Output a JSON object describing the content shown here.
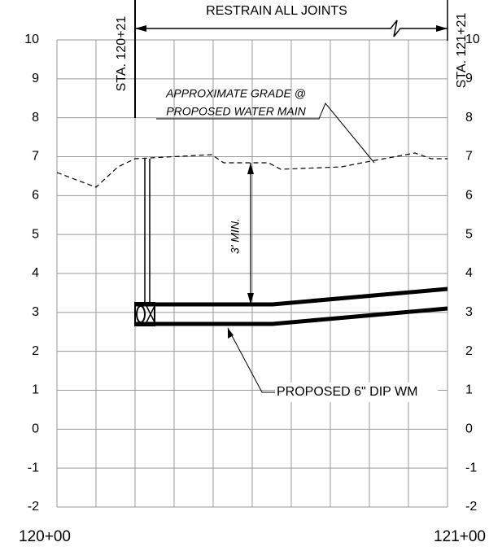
{
  "header": {
    "title": "RESTRAIN ALL JOINTS"
  },
  "stations": {
    "left": "STA. 120+21",
    "right": "STA. 121+21"
  },
  "axis": {
    "y_labels": [
      "10",
      "9",
      "8",
      "7",
      "6",
      "5",
      "4",
      "3",
      "2",
      "1",
      "0",
      "-1",
      "-2"
    ],
    "x_labels": [
      "120+00",
      "121+00"
    ]
  },
  "annotations": {
    "grade_line1": "APPROXIMATE GRADE @",
    "grade_line2": "PROPOSED WATER MAIN",
    "cover": "3' MIN.",
    "pipe": "PROPOSED 6\" DIP WM"
  }
}
